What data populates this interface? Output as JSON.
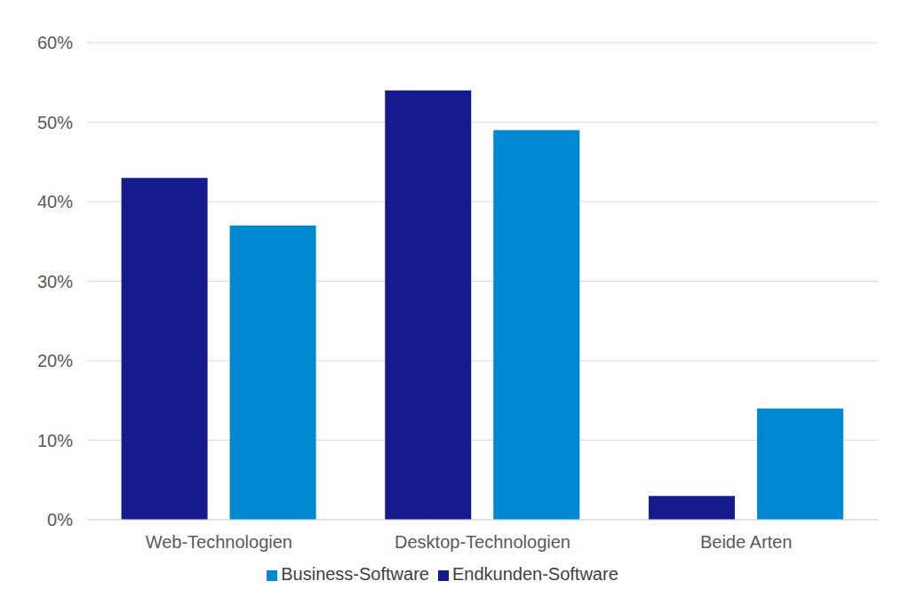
{
  "chart_data": {
    "type": "bar",
    "categories": [
      "Web-Technologien",
      "Desktop-Technologien",
      "Beide Arten"
    ],
    "series": [
      {
        "name": "Endkunden-Software",
        "color": "#151b8d",
        "values": [
          43,
          54,
          3
        ]
      },
      {
        "name": "Business-Software",
        "color": "#0088d1",
        "values": [
          37,
          49,
          14
        ]
      }
    ],
    "ylim": [
      0,
      60
    ],
    "yticks": [
      {
        "value": 0,
        "label": "0%"
      },
      {
        "value": 10,
        "label": "10%"
      },
      {
        "value": 20,
        "label": "20%"
      },
      {
        "value": 30,
        "label": "30%"
      },
      {
        "value": 40,
        "label": "40%"
      },
      {
        "value": 50,
        "label": "50%"
      },
      {
        "value": 60,
        "label": "60%"
      }
    ],
    "grid": true,
    "legend": "bottom"
  }
}
